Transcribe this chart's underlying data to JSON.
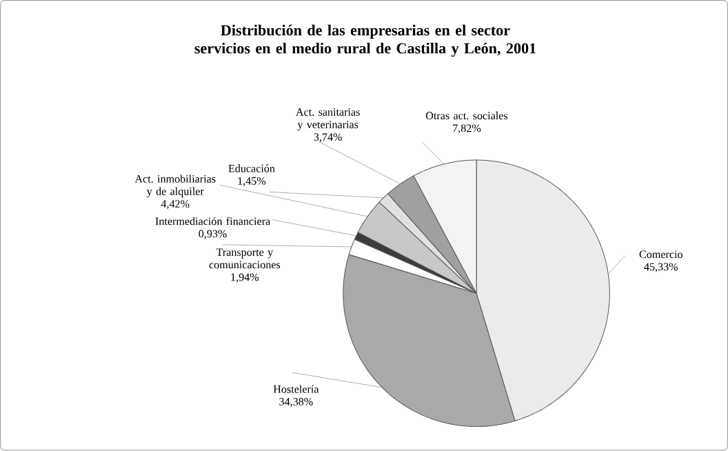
{
  "chart_data": {
    "type": "pie",
    "title": "Distribución de las empresarias en el sector servicios en el medio rural de Castilla y León, 2001",
    "categories": [
      "Comercio",
      "Hostelería",
      "Transporte y comunicaciones",
      "Intermediación financiera",
      "Act. inmobiliarias y de alquiler",
      "Educación",
      "Act. sanitarias y veterinarias",
      "Otras act. sociales"
    ],
    "values": [
      45.33,
      34.38,
      1.94,
      0.93,
      4.42,
      1.45,
      3.74,
      7.82
    ],
    "colors": [
      "#ebebeb",
      "#a9a9a9",
      "#ffffff",
      "#3c3c3c",
      "#c8c8c8",
      "#e0e0e0",
      "#a0a0a0",
      "#f3f3f3"
    ],
    "value_labels": [
      "45,33%",
      "34,38%",
      "1,94%",
      "0,93%",
      "4,42%",
      "1,45%",
      "3,74%",
      "7,82%"
    ]
  }
}
